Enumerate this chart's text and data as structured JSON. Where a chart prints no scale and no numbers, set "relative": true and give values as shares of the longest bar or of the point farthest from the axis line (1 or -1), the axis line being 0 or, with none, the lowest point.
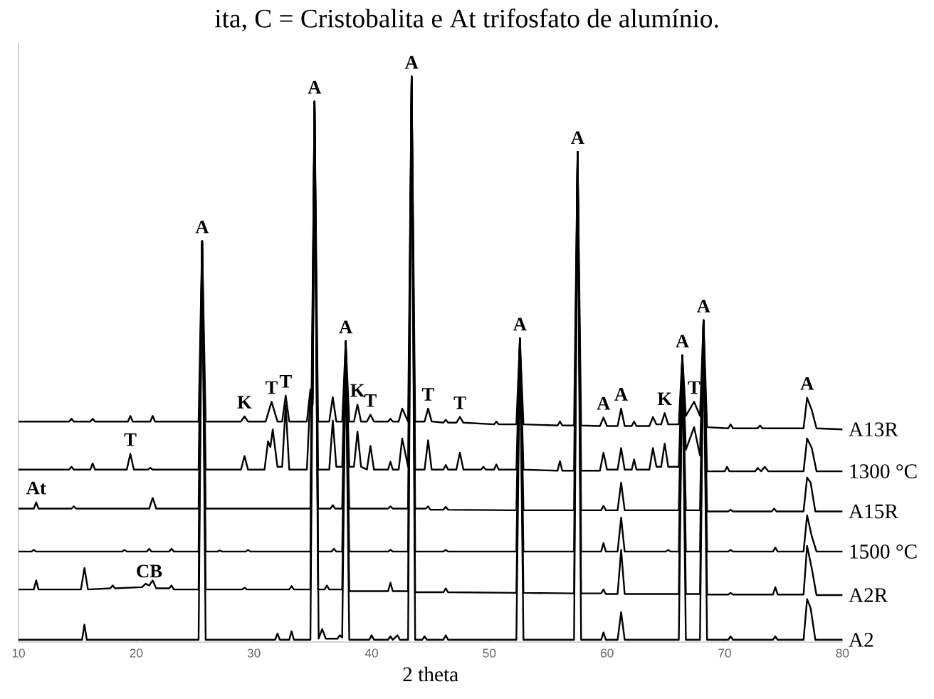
{
  "chart_data": {
    "type": "line",
    "relative": true,
    "title": "ita, C = Cristobalita e At trifosfato de alumínio.",
    "xlabel": "2 theta",
    "xlim": [
      10,
      80
    ],
    "xticks": [
      10,
      20,
      30,
      40,
      50,
      60,
      70,
      80
    ],
    "legend": false,
    "grid": false,
    "marker": "none",
    "line_style": "solid",
    "series": [
      {
        "name": "A13R",
        "color": "#000000",
        "x": [
          10,
          14.3,
          14.5,
          14.7,
          16.1,
          16.3,
          16.5,
          19.3,
          19.5,
          19.7,
          21.2,
          21.4,
          21.6,
          25.3,
          25.6,
          25.9,
          28.9,
          29.2,
          29.5,
          31.0,
          31.5,
          32.0,
          32.4,
          32.7,
          33.0,
          34.5,
          34.8,
          35.0,
          35.15,
          35.45,
          36.4,
          36.7,
          37.0,
          37.5,
          37.8,
          38.1,
          38.5,
          38.8,
          39.1,
          39.6,
          39.9,
          40.2,
          41.4,
          41.6,
          41.8,
          42.3,
          42.6,
          43.1,
          43.4,
          43.7,
          44.5,
          44.8,
          45.1,
          46.1,
          46.3,
          46.5,
          47.2,
          47.5,
          47.8,
          50.4,
          50.6,
          50.8,
          52.3,
          52.6,
          52.9,
          55.8,
          56.0,
          56.2,
          57.2,
          57.5,
          57.8,
          59.4,
          59.7,
          60.0,
          60.9,
          61.2,
          61.5,
          62.1,
          62.3,
          62.5,
          63.6,
          63.9,
          64.2,
          64.6,
          64.9,
          65.2,
          66.1,
          66.4,
          66.7,
          67.4,
          67.9,
          68.2,
          68.5,
          70.3,
          70.5,
          70.7,
          72.8,
          73.0,
          73.2,
          76.7,
          77.0,
          77.4,
          77.8,
          80
        ],
        "values": [
          0.39,
          0.39,
          0.395,
          0.39,
          0.39,
          0.395,
          0.39,
          0.39,
          0.4,
          0.39,
          0.39,
          0.4,
          0.39,
          0.39,
          0.709,
          0.39,
          0.39,
          0.399,
          0.39,
          0.39,
          0.425,
          0.39,
          0.39,
          0.436,
          0.39,
          0.39,
          0.447,
          0.43,
          0.956,
          0.39,
          0.39,
          0.433,
          0.39,
          0.39,
          0.532,
          0.39,
          0.39,
          0.42,
          0.39,
          0.39,
          0.402,
          0.39,
          0.39,
          0.395,
          0.39,
          0.39,
          0.413,
          0.39,
          1.0,
          0.39,
          0.39,
          0.413,
          0.39,
          0.388,
          0.393,
          0.388,
          0.388,
          0.398,
          0.388,
          0.385,
          0.39,
          0.385,
          0.385,
          0.537,
          0.385,
          0.383,
          0.39,
          0.383,
          0.383,
          0.867,
          0.383,
          0.382,
          0.397,
          0.382,
          0.382,
          0.413,
          0.382,
          0.382,
          0.39,
          0.382,
          0.382,
          0.398,
          0.385,
          0.385,
          0.405,
          0.385,
          0.385,
          0.507,
          0.4,
          0.425,
          0.4,
          0.569,
          0.38,
          0.378,
          0.385,
          0.378,
          0.378,
          0.383,
          0.378,
          0.378,
          0.432,
          0.41,
          0.378,
          0.376
        ]
      },
      {
        "name": "1300 °C",
        "color": "#000000",
        "x": [
          10,
          14.3,
          14.5,
          14.7,
          16.1,
          16.3,
          16.5,
          19.2,
          19.5,
          19.8,
          21.0,
          21.2,
          21.4,
          25.3,
          25.6,
          25.9,
          28.9,
          29.2,
          29.5,
          30.9,
          31.2,
          31.4,
          31.6,
          32.0,
          32.4,
          32.7,
          33.0,
          34.5,
          34.8,
          35.0,
          35.15,
          35.45,
          36.4,
          36.7,
          37.0,
          37.5,
          37.8,
          38.1,
          38.5,
          38.8,
          39.1,
          39.6,
          39.9,
          40.2,
          41.4,
          41.6,
          41.8,
          42.3,
          42.6,
          43.1,
          43.4,
          43.7,
          44.5,
          44.8,
          45.1,
          46.1,
          46.3,
          46.5,
          47.2,
          47.5,
          47.8,
          49.3,
          49.5,
          49.7,
          50.4,
          50.6,
          50.8,
          52.3,
          52.6,
          52.9,
          55.8,
          56.0,
          56.2,
          57.2,
          57.5,
          57.8,
          59.4,
          59.7,
          60.0,
          60.9,
          61.2,
          61.5,
          62.1,
          62.3,
          62.5,
          63.6,
          63.9,
          64.2,
          64.6,
          64.9,
          65.2,
          66.1,
          66.4,
          66.7,
          67.4,
          67.9,
          68.2,
          68.5,
          70.0,
          70.2,
          70.4,
          72.6,
          72.8,
          73.1,
          73.4,
          73.7,
          76.7,
          77.0,
          77.4,
          77.8,
          80
        ],
        "values": [
          0.305,
          0.305,
          0.31,
          0.305,
          0.305,
          0.316,
          0.305,
          0.305,
          0.333,
          0.305,
          0.305,
          0.308,
          0.305,
          0.305,
          0.709,
          0.305,
          0.305,
          0.329,
          0.305,
          0.305,
          0.355,
          0.345,
          0.376,
          0.31,
          0.31,
          0.42,
          0.305,
          0.305,
          0.44,
          0.42,
          0.956,
          0.305,
          0.305,
          0.392,
          0.31,
          0.31,
          0.532,
          0.31,
          0.31,
          0.372,
          0.31,
          0.305,
          0.347,
          0.305,
          0.305,
          0.319,
          0.305,
          0.305,
          0.36,
          0.31,
          1.0,
          0.305,
          0.305,
          0.357,
          0.305,
          0.305,
          0.313,
          0.305,
          0.305,
          0.335,
          0.305,
          0.305,
          0.31,
          0.305,
          0.305,
          0.314,
          0.305,
          0.305,
          0.537,
          0.305,
          0.303,
          0.32,
          0.303,
          0.303,
          0.867,
          0.303,
          0.303,
          0.335,
          0.305,
          0.305,
          0.343,
          0.305,
          0.305,
          0.323,
          0.305,
          0.305,
          0.343,
          0.31,
          0.31,
          0.351,
          0.31,
          0.31,
          0.507,
          0.34,
          0.38,
          0.33,
          0.569,
          0.302,
          0.302,
          0.31,
          0.302,
          0.302,
          0.308,
          0.302,
          0.31,
          0.302,
          0.302,
          0.36,
          0.343,
          0.302,
          0.302
        ]
      },
      {
        "name": "A15R",
        "color": "#000000",
        "x": [
          10,
          11.3,
          11.5,
          11.7,
          14.5,
          14.7,
          14.9,
          21.1,
          21.4,
          21.7,
          25.3,
          25.6,
          25.9,
          34.8,
          35.15,
          35.45,
          36.5,
          36.7,
          36.9,
          37.5,
          37.8,
          38.1,
          41.4,
          41.6,
          41.8,
          43.1,
          43.4,
          43.7,
          44.6,
          44.8,
          45.0,
          46.1,
          46.3,
          46.5,
          52.3,
          52.6,
          52.9,
          57.2,
          57.5,
          57.8,
          59.5,
          59.7,
          59.9,
          60.9,
          61.2,
          61.5,
          66.1,
          66.4,
          66.7,
          67.9,
          68.2,
          68.5,
          70.3,
          70.5,
          70.7,
          74.0,
          74.2,
          74.4,
          76.7,
          77.0,
          77.3,
          77.7,
          80
        ],
        "values": [
          0.236,
          0.236,
          0.247,
          0.236,
          0.236,
          0.24,
          0.236,
          0.236,
          0.255,
          0.236,
          0.236,
          0.709,
          0.236,
          0.236,
          0.956,
          0.236,
          0.236,
          0.242,
          0.236,
          0.236,
          0.532,
          0.236,
          0.236,
          0.24,
          0.236,
          0.236,
          1.0,
          0.236,
          0.236,
          0.24,
          0.234,
          0.234,
          0.239,
          0.234,
          0.233,
          0.537,
          0.233,
          0.233,
          0.867,
          0.233,
          0.233,
          0.241,
          0.233,
          0.233,
          0.282,
          0.233,
          0.233,
          0.507,
          0.233,
          0.233,
          0.569,
          0.231,
          0.231,
          0.234,
          0.231,
          0.231,
          0.236,
          0.231,
          0.231,
          0.291,
          0.282,
          0.231,
          0.231
        ]
      },
      {
        "name": "1500 °C",
        "color": "#000000",
        "x": [
          10,
          11.1,
          11.3,
          11.5,
          18.8,
          19.0,
          19.2,
          20.9,
          21.1,
          21.3,
          22.8,
          23.0,
          23.2,
          25.3,
          25.6,
          25.9,
          26.9,
          27.1,
          27.3,
          29.3,
          29.5,
          29.7,
          34.8,
          35.15,
          35.45,
          36.6,
          36.8,
          37.0,
          37.5,
          37.8,
          38.1,
          41.4,
          41.6,
          41.8,
          43.1,
          43.4,
          43.7,
          46.1,
          46.3,
          46.5,
          52.3,
          52.6,
          52.9,
          57.2,
          57.5,
          57.8,
          59.5,
          59.7,
          59.9,
          60.9,
          61.2,
          61.5,
          65.0,
          65.2,
          65.4,
          66.1,
          66.4,
          66.7,
          67.9,
          68.2,
          68.5,
          70.3,
          70.5,
          70.7,
          74.1,
          74.3,
          74.5,
          76.7,
          77.0,
          77.4,
          77.8,
          80
        ],
        "values": [
          0.16,
          0.16,
          0.163,
          0.16,
          0.16,
          0.163,
          0.16,
          0.16,
          0.165,
          0.16,
          0.16,
          0.165,
          0.16,
          0.16,
          0.709,
          0.16,
          0.16,
          0.162,
          0.16,
          0.16,
          0.163,
          0.16,
          0.16,
          0.956,
          0.16,
          0.16,
          0.165,
          0.16,
          0.16,
          0.532,
          0.16,
          0.16,
          0.163,
          0.16,
          0.16,
          1.0,
          0.16,
          0.16,
          0.163,
          0.16,
          0.16,
          0.537,
          0.16,
          0.16,
          0.867,
          0.16,
          0.16,
          0.175,
          0.16,
          0.16,
          0.22,
          0.16,
          0.16,
          0.163,
          0.16,
          0.16,
          0.507,
          0.16,
          0.16,
          0.569,
          0.16,
          0.16,
          0.163,
          0.16,
          0.16,
          0.167,
          0.16,
          0.16,
          0.224,
          0.187,
          0.16,
          0.16
        ]
      },
      {
        "name": "A2R",
        "color": "#000000",
        "x": [
          10,
          11.3,
          11.5,
          11.7,
          15.3,
          15.6,
          15.9,
          17.8,
          18.0,
          18.2,
          20.5,
          20.8,
          21.1,
          21.4,
          21.7,
          22.8,
          23.0,
          23.2,
          25.3,
          25.6,
          25.9,
          29.0,
          29.2,
          29.4,
          33.0,
          33.2,
          33.4,
          34.8,
          35.15,
          35.45,
          36.0,
          36.2,
          36.4,
          37.5,
          37.8,
          38.1,
          41.4,
          41.6,
          41.8,
          43.1,
          43.4,
          43.7,
          46.1,
          46.3,
          46.5,
          52.3,
          52.6,
          52.9,
          57.2,
          57.5,
          57.8,
          59.5,
          59.7,
          59.9,
          60.9,
          61.2,
          61.5,
          66.1,
          66.4,
          66.7,
          67.9,
          68.2,
          68.5,
          70.3,
          70.5,
          70.7,
          74.1,
          74.3,
          74.5,
          76.7,
          77.0,
          77.4,
          77.8,
          80
        ],
        "values": [
          0.093,
          0.093,
          0.109,
          0.093,
          0.093,
          0.131,
          0.093,
          0.095,
          0.1,
          0.095,
          0.097,
          0.103,
          0.1,
          0.109,
          0.095,
          0.095,
          0.1,
          0.093,
          0.093,
          0.709,
          0.093,
          0.093,
          0.096,
          0.093,
          0.093,
          0.099,
          0.093,
          0.093,
          0.956,
          0.093,
          0.093,
          0.1,
          0.093,
          0.093,
          0.532,
          0.09,
          0.09,
          0.105,
          0.09,
          0.09,
          1.0,
          0.088,
          0.088,
          0.095,
          0.088,
          0.087,
          0.537,
          0.087,
          0.086,
          0.867,
          0.086,
          0.086,
          0.093,
          0.085,
          0.085,
          0.163,
          0.085,
          0.085,
          0.507,
          0.085,
          0.085,
          0.569,
          0.084,
          0.084,
          0.087,
          0.084,
          0.084,
          0.097,
          0.084,
          0.084,
          0.17,
          0.13,
          0.083,
          0.083
        ]
      },
      {
        "name": "A2",
        "color": "#000000",
        "x": [
          10,
          15.4,
          15.6,
          15.8,
          25.3,
          25.6,
          25.9,
          31.8,
          32.0,
          32.2,
          33.0,
          33.2,
          33.4,
          34.8,
          35.15,
          35.5,
          35.8,
          36.1,
          37.1,
          37.3,
          37.5,
          37.8,
          38.1,
          39.8,
          40.0,
          40.2,
          41.4,
          41.6,
          41.8,
          42.2,
          42.4,
          43.1,
          43.4,
          43.7,
          44.3,
          44.5,
          44.7,
          46.1,
          46.3,
          46.5,
          52.3,
          52.6,
          52.9,
          57.2,
          57.5,
          57.8,
          59.5,
          59.7,
          59.9,
          60.9,
          61.2,
          61.5,
          66.1,
          66.4,
          66.7,
          67.9,
          68.2,
          68.5,
          70.3,
          70.5,
          70.7,
          74.1,
          74.3,
          74.5,
          76.7,
          77.0,
          77.3,
          77.7,
          80
        ],
        "values": [
          0.004,
          0.004,
          0.031,
          0.004,
          0.004,
          0.709,
          0.004,
          0.004,
          0.015,
          0.004,
          0.004,
          0.019,
          0.004,
          0.004,
          0.956,
          0.006,
          0.023,
          0.006,
          0.006,
          0.012,
          0.008,
          0.532,
          0.004,
          0.004,
          0.012,
          0.004,
          0.004,
          0.01,
          0.004,
          0.012,
          0.004,
          0.004,
          1.0,
          0.004,
          0.004,
          0.01,
          0.004,
          0.004,
          0.012,
          0.004,
          0.004,
          0.537,
          0.004,
          0.004,
          0.867,
          0.004,
          0.004,
          0.017,
          0.004,
          0.004,
          0.053,
          0.004,
          0.004,
          0.507,
          0.004,
          0.004,
          0.569,
          0.004,
          0.004,
          0.01,
          0.004,
          0.004,
          0.01,
          0.004,
          0.004,
          0.076,
          0.06,
          0.004,
          0.004
        ]
      }
    ],
    "annotations": [
      {
        "text": "A",
        "x": 25.6,
        "y": 0.709
      },
      {
        "text": "A",
        "x": 35.15,
        "y": 0.956
      },
      {
        "text": "A",
        "x": 37.8,
        "y": 0.532
      },
      {
        "text": "A",
        "x": 43.4,
        "y": 1.0
      },
      {
        "text": "A",
        "x": 52.6,
        "y": 0.537
      },
      {
        "text": "A",
        "x": 57.5,
        "y": 0.867
      },
      {
        "text": "A",
        "x": 66.4,
        "y": 0.507
      },
      {
        "text": "A",
        "x": 68.2,
        "y": 0.569
      },
      {
        "text": "T",
        "x": 67.4,
        "y": 0.425
      },
      {
        "text": "A",
        "x": 77.0,
        "y": 0.432
      },
      {
        "text": "A",
        "x": 59.7,
        "y": 0.397
      },
      {
        "text": "A",
        "x": 61.2,
        "y": 0.413
      },
      {
        "text": "K",
        "x": 64.9,
        "y": 0.405
      },
      {
        "text": "K",
        "x": 29.2,
        "y": 0.399
      },
      {
        "text": "T",
        "x": 31.5,
        "y": 0.425
      },
      {
        "text": "T",
        "x": 32.7,
        "y": 0.436
      },
      {
        "text": "K",
        "x": 38.8,
        "y": 0.42
      },
      {
        "text": "T",
        "x": 39.9,
        "y": 0.402
      },
      {
        "text": "T",
        "x": 44.8,
        "y": 0.413
      },
      {
        "text": "T",
        "x": 47.5,
        "y": 0.398
      },
      {
        "text": "T",
        "x": 19.5,
        "y": 0.333
      },
      {
        "text": "At",
        "x": 11.5,
        "y": 0.247
      },
      {
        "text": "CB",
        "x": 21.1,
        "y": 0.1
      }
    ]
  }
}
